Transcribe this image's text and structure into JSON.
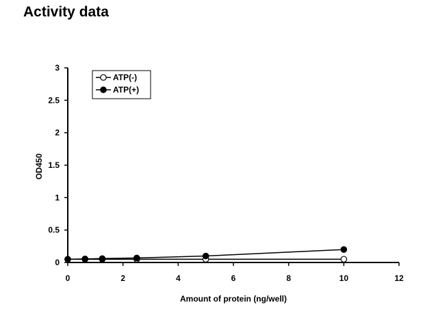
{
  "page": {
    "title": "Activity data"
  },
  "chart_data": {
    "type": "line",
    "title": "",
    "xlabel": "Amount of protein (ng/well)",
    "ylabel": "OD450",
    "xlim": [
      0,
      12
    ],
    "ylim": [
      0,
      3
    ],
    "xticks": [
      0,
      2,
      4,
      6,
      8,
      10,
      12
    ],
    "yticks": [
      0,
      0.5,
      1,
      1.5,
      2,
      2.5,
      3
    ],
    "xtick_labels": [
      "0",
      "2",
      "4",
      "6",
      "8",
      "10",
      "12"
    ],
    "ytick_labels": [
      "0",
      "0.5",
      "1",
      "1.5",
      "2",
      "2.5",
      "3"
    ],
    "grid": false,
    "legend_position": "top-left",
    "series": [
      {
        "name": "ATP(-)",
        "marker": "open-circle",
        "color": "#000000",
        "x": [
          0,
          0.625,
          1.25,
          2.5,
          5,
          10
        ],
        "y": [
          0.05,
          0.05,
          0.05,
          0.05,
          0.05,
          0.05
        ]
      },
      {
        "name": "ATP(+)",
        "marker": "filled-circle",
        "color": "#000000",
        "x": [
          0,
          0.625,
          1.25,
          2.5,
          5,
          10
        ],
        "y": [
          0.05,
          0.055,
          0.06,
          0.07,
          0.1,
          0.2
        ]
      }
    ]
  }
}
